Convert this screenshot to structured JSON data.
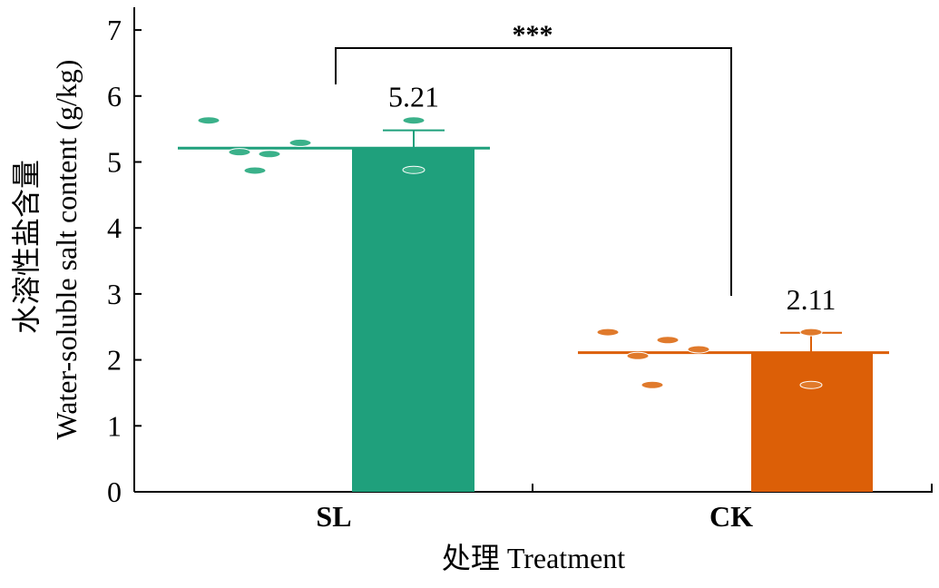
{
  "chart_data": {
    "type": "bar",
    "categories": [
      "SL",
      "CK"
    ],
    "values": [
      5.21,
      2.11
    ],
    "value_labels": [
      "5.21",
      "2.11"
    ],
    "error_upper": [
      5.48,
      2.41
    ],
    "colors": [
      "#1fa07c",
      "#dc5f07"
    ],
    "points_color": [
      "#3bb18a",
      "#e07a2c"
    ],
    "points": [
      [
        5.63,
        5.15,
        5.12,
        4.87,
        5.29,
        5.63,
        4.88
      ],
      [
        2.42,
        2.06,
        1.62,
        2.3,
        2.16,
        2.42,
        1.62
      ]
    ],
    "ylabel_line1": "水溶性盐含量",
    "ylabel_line2": "Water-soluble salt content (g/kg)",
    "xlabel": "处理 Treatment",
    "ylim": [
      0,
      7
    ],
    "yticks": [
      "0",
      "1",
      "2",
      "3",
      "4",
      "5",
      "6",
      "7"
    ],
    "significance": "***"
  }
}
